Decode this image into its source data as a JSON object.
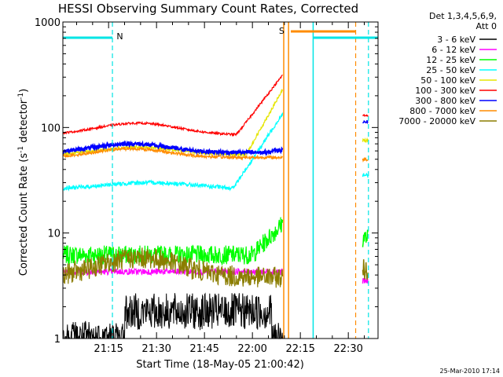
{
  "chart_data": {
    "type": "line",
    "title": "HESSI Observing Summary Count Rates, Corrected",
    "xlabel": "Start Time (18-May-05 21:00:42)",
    "ylabel_main": "Corrected Count Rate (s",
    "ylabel_sup1": "-1",
    "ylabel_mid": " detector",
    "ylabel_sup2": "-1",
    "ylabel_end": ")",
    "y_scale": "log",
    "ylim": [
      1,
      1000
    ],
    "xlim": [
      "21:00:42",
      "22:40:00"
    ],
    "x_ticks": [
      {
        "label": "21:15",
        "minutes": 15
      },
      {
        "label": "21:30",
        "minutes": 30
      },
      {
        "label": "21:45",
        "minutes": 45
      },
      {
        "label": "22:00",
        "minutes": 60
      },
      {
        "label": "22:15",
        "minutes": 75
      },
      {
        "label": "22:30",
        "minutes": 90
      }
    ],
    "y_ticks": [
      {
        "label": "1",
        "value": 1
      },
      {
        "label": "10",
        "value": 10
      },
      {
        "label": "100",
        "value": 100
      },
      {
        "label": "1000",
        "value": 1000
      }
    ],
    "legend_header": [
      "Det 1,3,4,5,6,9,",
      "Att 0"
    ],
    "legend_placement": "outside-right",
    "annotations": [
      {
        "text": "N",
        "color": "#00e5e5",
        "minute": 19
      },
      {
        "text": "S",
        "color": "#ff8c00",
        "minute": 72
      }
    ],
    "series": [
      {
        "name": "3 - 6 keV",
        "color": "#000000"
      },
      {
        "name": "6 - 12 keV",
        "color": "#ff00ff"
      },
      {
        "name": "12 - 25 keV",
        "color": "#00ff00"
      },
      {
        "name": "25 - 50 keV",
        "color": "#00ffff"
      },
      {
        "name": "50 - 100 keV",
        "color": "#e5e500"
      },
      {
        "name": "100 - 300 keV",
        "color": "#ff0000"
      },
      {
        "name": "300 - 800 keV",
        "color": "#0000ff"
      },
      {
        "name": "800 - 7000 keV",
        "color": "#ff8c00"
      },
      {
        "name": "7000 - 20000 keV",
        "color": "#8b7d00"
      }
    ]
  },
  "footer": {
    "timestamp": "25-Mar-2010 17:14"
  }
}
